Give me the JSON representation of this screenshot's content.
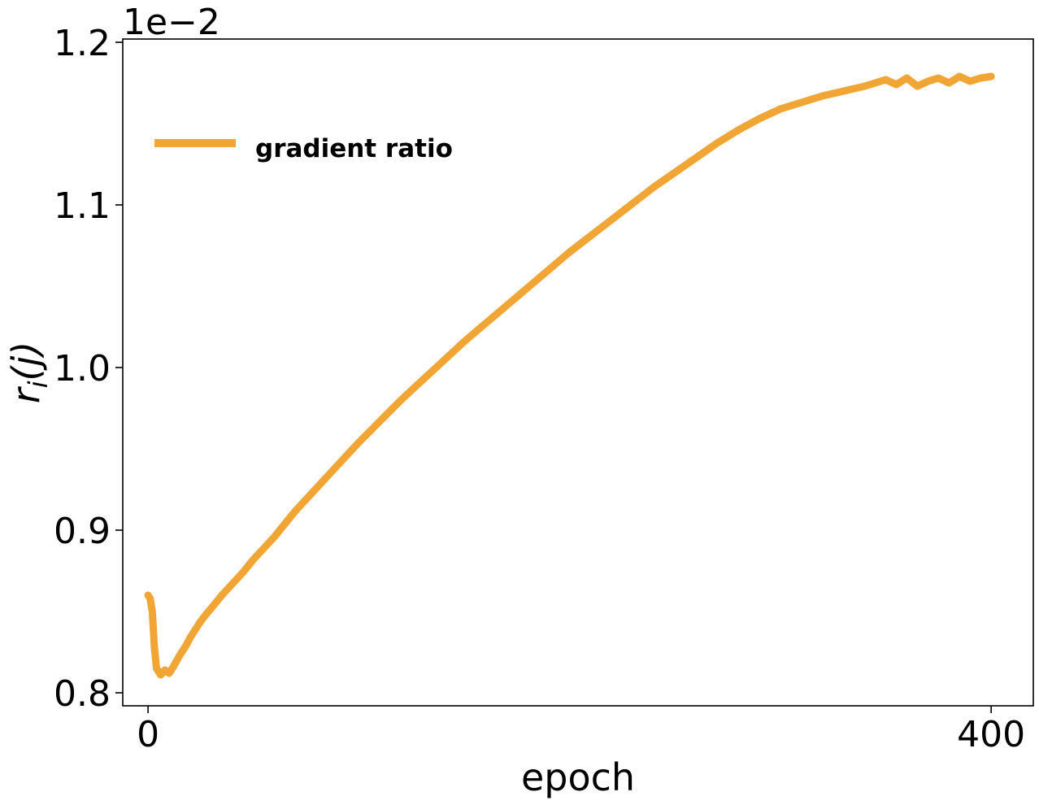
{
  "chart_data": {
    "type": "line",
    "xlabel": "epoch",
    "ylabel": "r_i(j)",
    "ylabel_parts": {
      "main": "r",
      "sub": "i",
      "rest": "(j)"
    },
    "y_offset_label": "1e−2",
    "xlim": [
      -12,
      420
    ],
    "ylim": [
      0.792,
      1.202
    ],
    "x_ticks": [
      {
        "value": 0,
        "label": "0"
      },
      {
        "value": 400,
        "label": "400"
      }
    ],
    "y_ticks": [
      {
        "value": 0.8,
        "label": "0.8"
      },
      {
        "value": 0.9,
        "label": "0.9"
      },
      {
        "value": 1.0,
        "label": "1.0"
      },
      {
        "value": 1.1,
        "label": "1.1"
      },
      {
        "value": 1.2,
        "label": "1.2"
      }
    ],
    "grid": false,
    "legend_position": "upper-left",
    "series": [
      {
        "name": "gradient ratio",
        "color": "#f0a535",
        "x": [
          0,
          1,
          2,
          3,
          4,
          6,
          8,
          10,
          12,
          15,
          18,
          20,
          22,
          25,
          28,
          30,
          35,
          40,
          45,
          50,
          55,
          60,
          65,
          70,
          75,
          80,
          85,
          90,
          95,
          100,
          110,
          120,
          130,
          140,
          150,
          160,
          170,
          180,
          190,
          200,
          210,
          220,
          230,
          240,
          250,
          260,
          270,
          280,
          290,
          300,
          310,
          320,
          330,
          340,
          350,
          355,
          360,
          365,
          370,
          375,
          380,
          385,
          390,
          395,
          400
        ],
        "values": [
          0.86,
          0.858,
          0.85,
          0.828,
          0.815,
          0.811,
          0.814,
          0.812,
          0.816,
          0.823,
          0.829,
          0.834,
          0.838,
          0.844,
          0.849,
          0.852,
          0.86,
          0.867,
          0.874,
          0.882,
          0.889,
          0.896,
          0.904,
          0.912,
          0.919,
          0.926,
          0.933,
          0.94,
          0.947,
          0.954,
          0.967,
          0.98,
          0.992,
          1.004,
          1.016,
          1.027,
          1.038,
          1.049,
          1.06,
          1.071,
          1.081,
          1.091,
          1.101,
          1.111,
          1.12,
          1.129,
          1.138,
          1.146,
          1.153,
          1.159,
          1.163,
          1.167,
          1.17,
          1.173,
          1.177,
          1.174,
          1.178,
          1.173,
          1.176,
          1.178,
          1.175,
          1.179,
          1.176,
          1.178,
          1.179
        ]
      }
    ]
  }
}
